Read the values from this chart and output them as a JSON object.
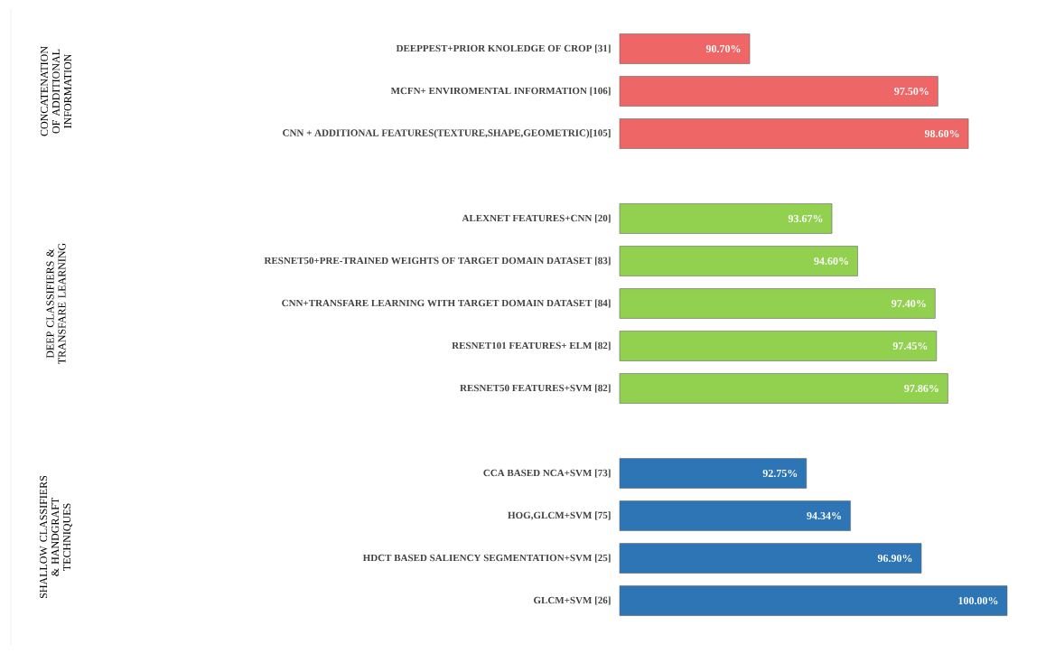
{
  "chart_data": {
    "type": "bar",
    "orientation": "horizontal",
    "categories": [
      "DEEPPEST+PRIOR KNOLEDGE OF CROP [31]",
      "MCFN+ ENVIROMENTAL INFORMATION [106]",
      "CNN + ADDITIONAL FEATURES(TEXTURE,SHAPE,GEOMETRIC)[105]",
      null,
      "ALEXNET FEATURES+CNN [20]",
      "RESNET50+PRE-TRAINED WEIGHTS OF  TARGET DOMAIN DATASET [83]",
      "CNN+TRANSFARE LEARNING WITH TARGET DOMAIN DATASET [84]",
      "RESNET101 FEATURES+ ELM [82]",
      "RESNET50 FEATURES+SVM [82]",
      null,
      "CCA BASED NCA+SVM [73]",
      "HOG,GLCM+SVM [75]",
      "HDCT BASED SALIENCY SEGMENTATION+SVM [25]",
      "GLCM+SVM [26]"
    ],
    "values": [
      90.7,
      97.5,
      98.6,
      null,
      93.67,
      94.6,
      97.4,
      97.45,
      97.86,
      null,
      92.75,
      94.34,
      96.9,
      100.0
    ],
    "value_labels": [
      "90.70%",
      "97.50%",
      "98.60%",
      null,
      "93.67%",
      "94.60%",
      "97.40%",
      "97.45%",
      "97.86%",
      null,
      "92.75%",
      "94.34%",
      "96.90%",
      "100.00%"
    ],
    "colors": [
      "#ee6766",
      "#ee6766",
      "#ee6766",
      null,
      "#92d050",
      "#92d050",
      "#92d050",
      "#92d050",
      "#92d050",
      null,
      "#2e75b6",
      "#2e75b6",
      "#2e75b6",
      "#2e75b6"
    ],
    "xlim": [
      86,
      100
    ],
    "tick_labels": "y",
    "annotations": [
      "CONCATENATION OF ADDITIONAL INFORMATION",
      "DEEP CLASSIFIERS & TRANSFARE LEARNING",
      "SHALLOW CLASSIFIERS & HANDGRAFT TECHNIQUES"
    ]
  }
}
